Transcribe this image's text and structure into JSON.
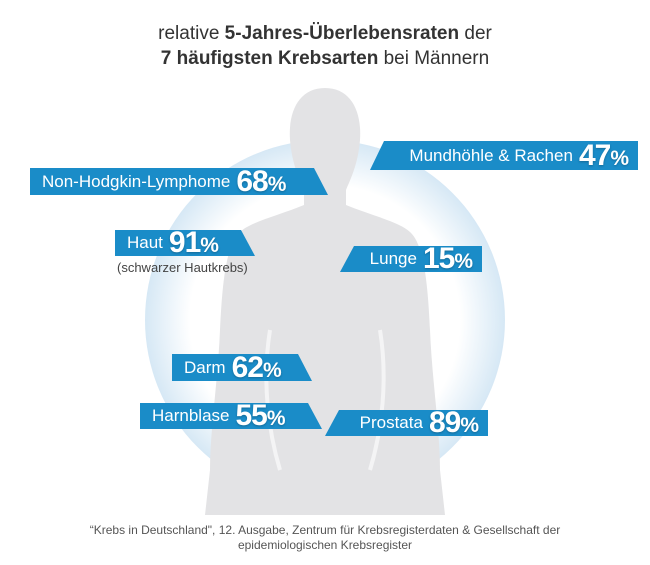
{
  "title": {
    "line1_pre": "relative ",
    "line1_bold": "5-Jahres-Überlebensraten",
    "line1_post": " der",
    "line2_bold": "7 häufigsten Krebsarten",
    "line2_post": " bei Männern"
  },
  "colors": {
    "banner": "#1a8cc8",
    "silhouette": "#e3e3e5",
    "glow": "#dbeaf5"
  },
  "chart_data": {
    "type": "bar",
    "categories": [
      "Mundhöhle & Rachen",
      "Non-Hodgkin-Lymphome",
      "Haut",
      "Lunge",
      "Darm",
      "Harnblase",
      "Prostata"
    ],
    "values": [
      47,
      68,
      91,
      15,
      62,
      55,
      89
    ],
    "unit": "%",
    "notes": {
      "Haut": "(schwarzer Hautkrebs)"
    }
  },
  "items": [
    {
      "label": "Mundhöhle & Rachen",
      "value": "47",
      "unit": "%"
    },
    {
      "label": "Non-Hodgkin-Lymphome",
      "value": "68",
      "unit": "%"
    },
    {
      "label": "Haut",
      "value": "91",
      "unit": "%",
      "note": "(schwarzer Hautkrebs)"
    },
    {
      "label": "Lunge",
      "value": "15",
      "unit": "%"
    },
    {
      "label": "Darm",
      "value": "62",
      "unit": "%"
    },
    {
      "label": "Harnblase",
      "value": "55",
      "unit": "%"
    },
    {
      "label": "Prostata",
      "value": "89",
      "unit": "%"
    }
  ],
  "source": {
    "line1": "“Krebs in Deutschland\", 12. Ausgabe, Zentrum für Krebsregisterdaten & Gesellschaft der",
    "line2": "epidemiologischen Krebsregister"
  }
}
